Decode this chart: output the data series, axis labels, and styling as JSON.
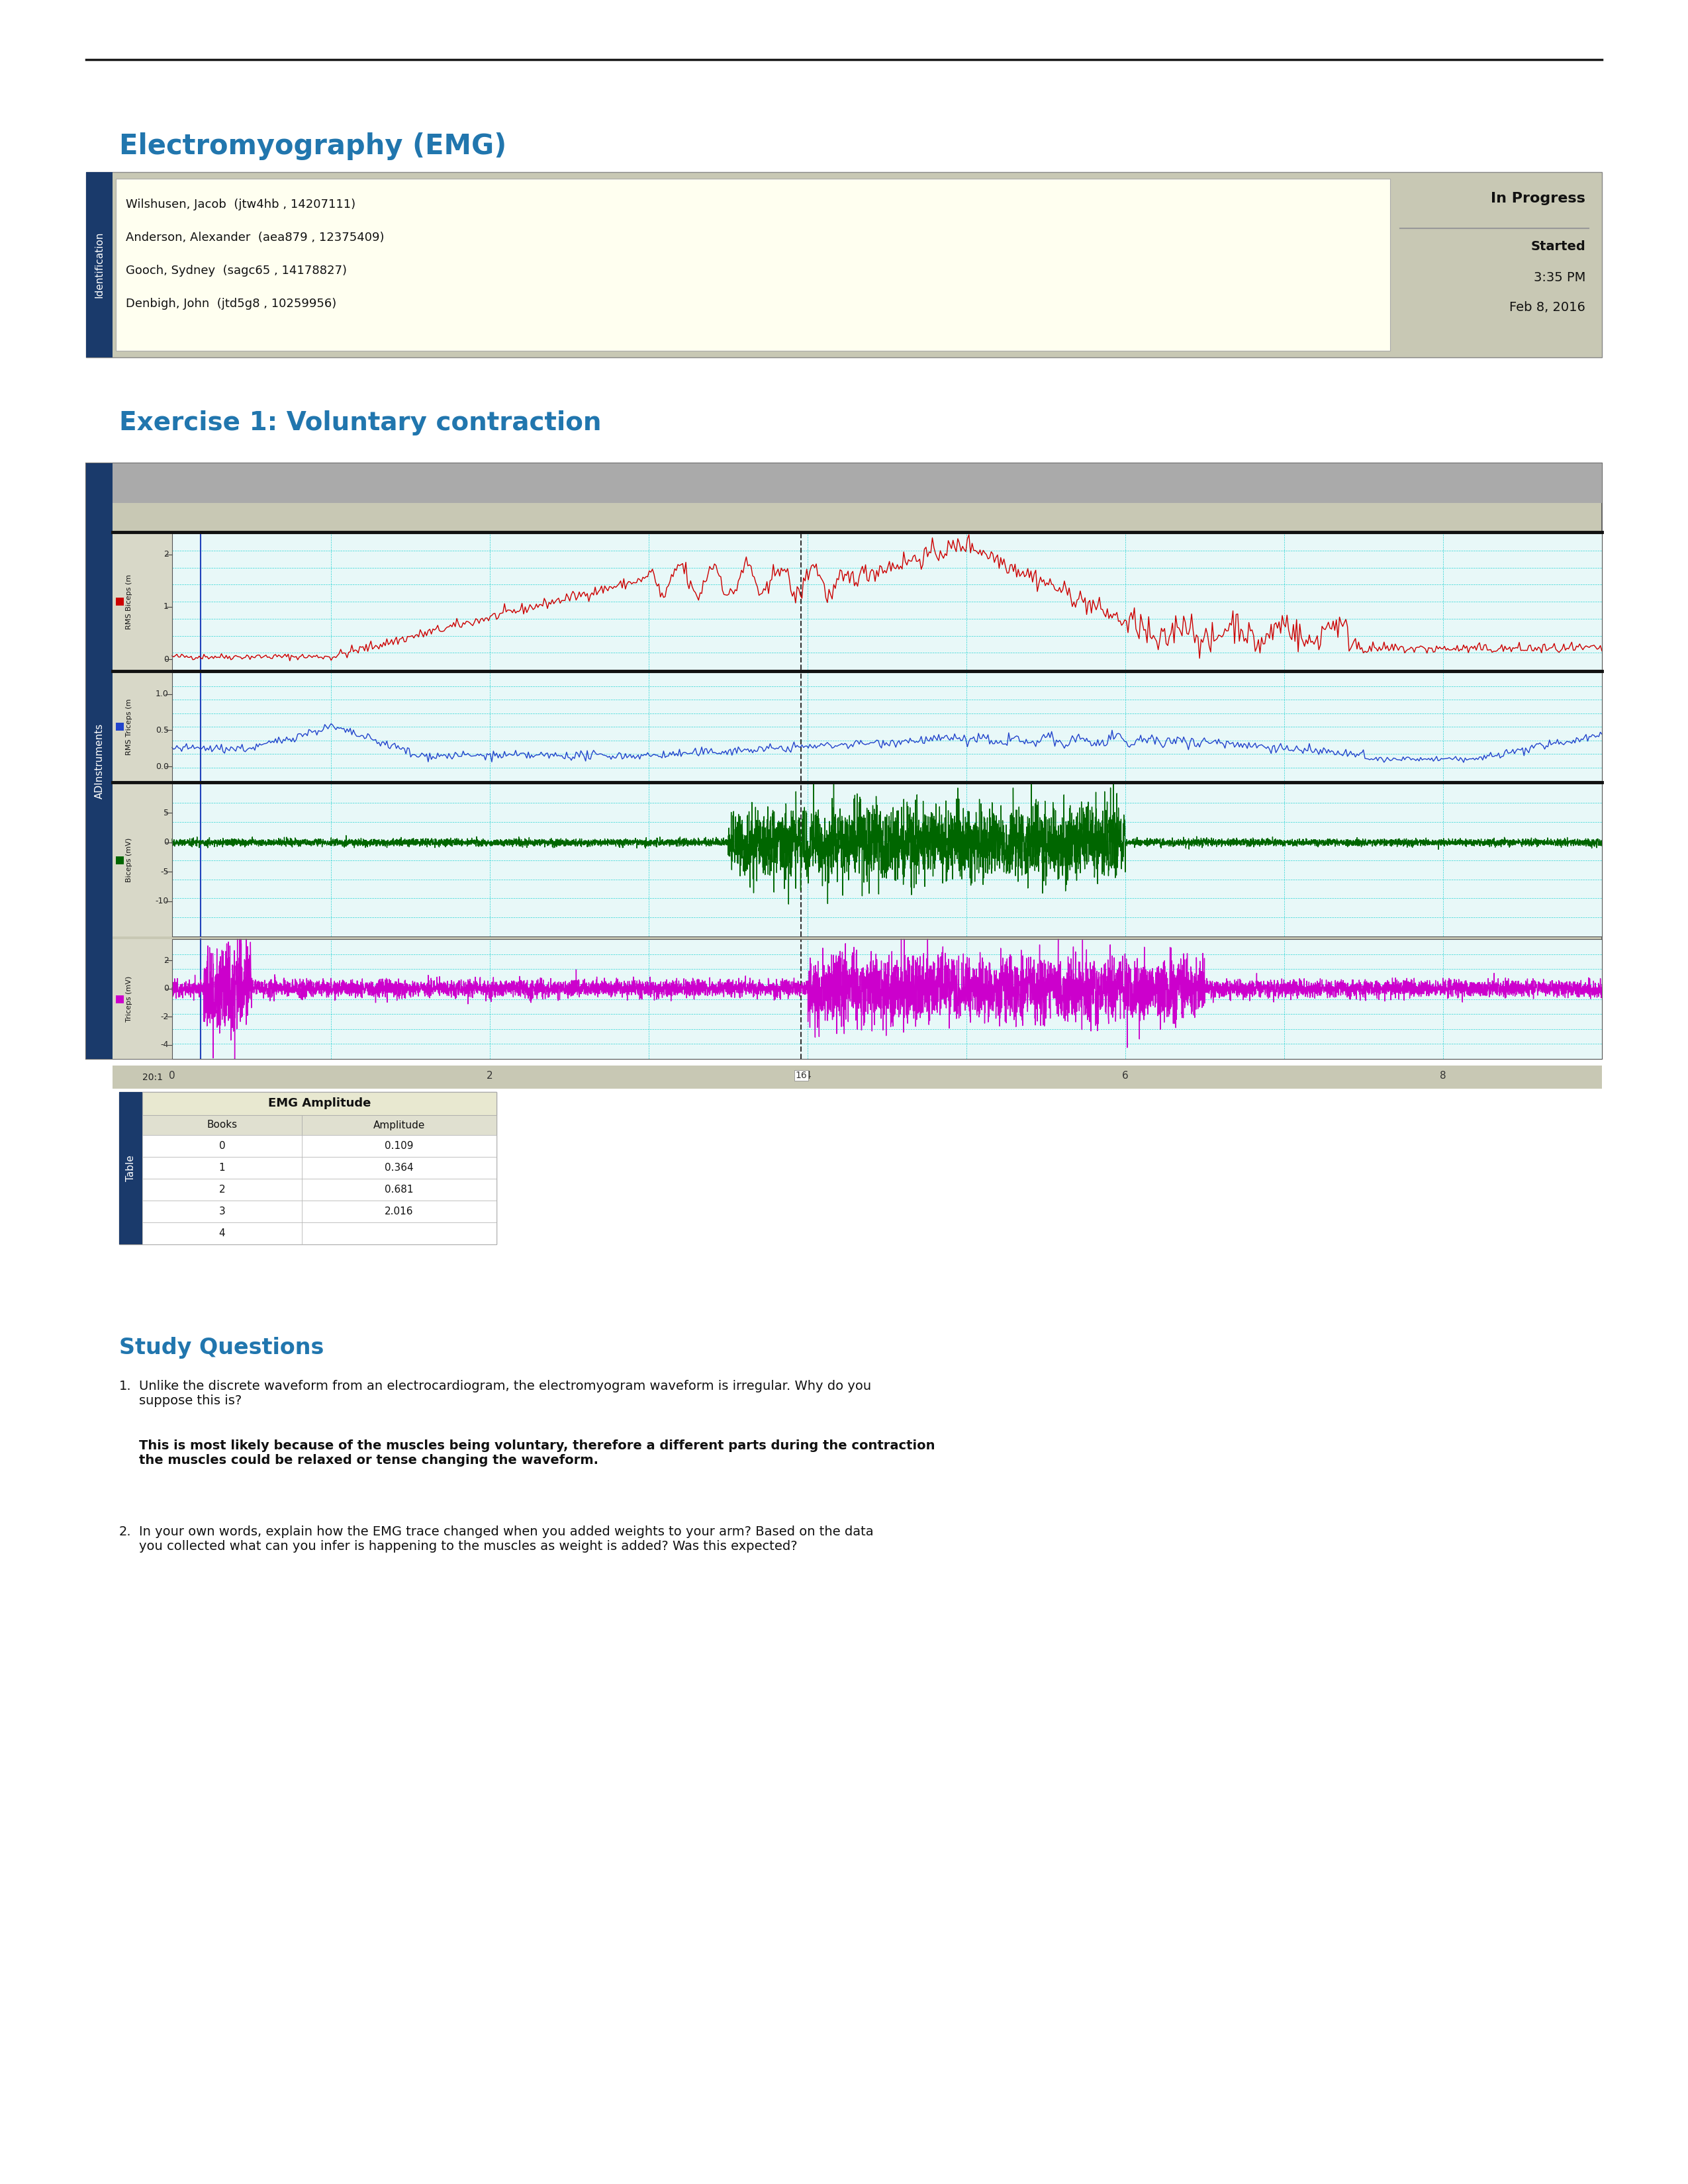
{
  "title_emg": "Electromyography (EMG)",
  "title_ex1": "Exercise 1: Voluntary contraction",
  "title_color": "#2176AE",
  "page_bg": "#ffffff",
  "header_line_color": "#1a1a1a",
  "id_box": {
    "bg": "#c8c8b4",
    "label_bg": "#1a3a6b",
    "label_text": "Identification",
    "label_color": "#ffffff",
    "content_bg": "#fffff0",
    "names": [
      "Wilshusen, Jacob  (jtw4hb , 14207111)",
      "Anderson, Alexander  (aea879 , 12375409)",
      "Gooch, Sydney  (sagc65 , 14178827)",
      "Denbigh, John  (jtd5g8 , 10259956)"
    ],
    "status": "In Progress",
    "started_label": "Started",
    "time": "3:35 PM",
    "date": "Feb 8, 2016"
  },
  "chart_bg": "#c8c8b4",
  "chart_plot_bg": "#e8f8f8",
  "chart_label_bg": "#1a3a6b",
  "chart_label_text": "ADInstruments",
  "grid_color": "#00cccc",
  "dashed_line_color": "#333333",
  "trace1_color": "#cc0000",
  "trace2_color": "#2244cc",
  "trace3_color": "#006600",
  "trace4_color": "#cc00cc",
  "table": {
    "header": "EMG Amplitude",
    "col1": "Books",
    "col2": "Amplitude",
    "rows": [
      [
        0,
        0.109
      ],
      [
        1,
        0.364
      ],
      [
        2,
        0.681
      ],
      [
        3,
        2.016
      ],
      [
        4,
        ""
      ]
    ],
    "bg": "#c8c8b4",
    "header_bg": "#e8e8d0",
    "label_bg": "#1a3a6b",
    "label_text": "Table",
    "label_color": "#ffffff",
    "cell_bg": "#ffffff"
  },
  "study_questions_title": "Study Questions",
  "q1_text": "Unlike the discrete waveform from an electrocardiogram, the electromyogram waveform is irregular. Why do you\nsuppose this is?",
  "q1_answer": "This is most likely because of the muscles being voluntary, therefore a different parts during the contraction\nthe muscles could be relaxed or tense changing the waveform.",
  "q2_text": "In your own words, explain how the EMG trace changed when you added weights to your arm? Based on the data\nyou collected what can you infer is happening to the muscles as weight is added? Was this expected?"
}
